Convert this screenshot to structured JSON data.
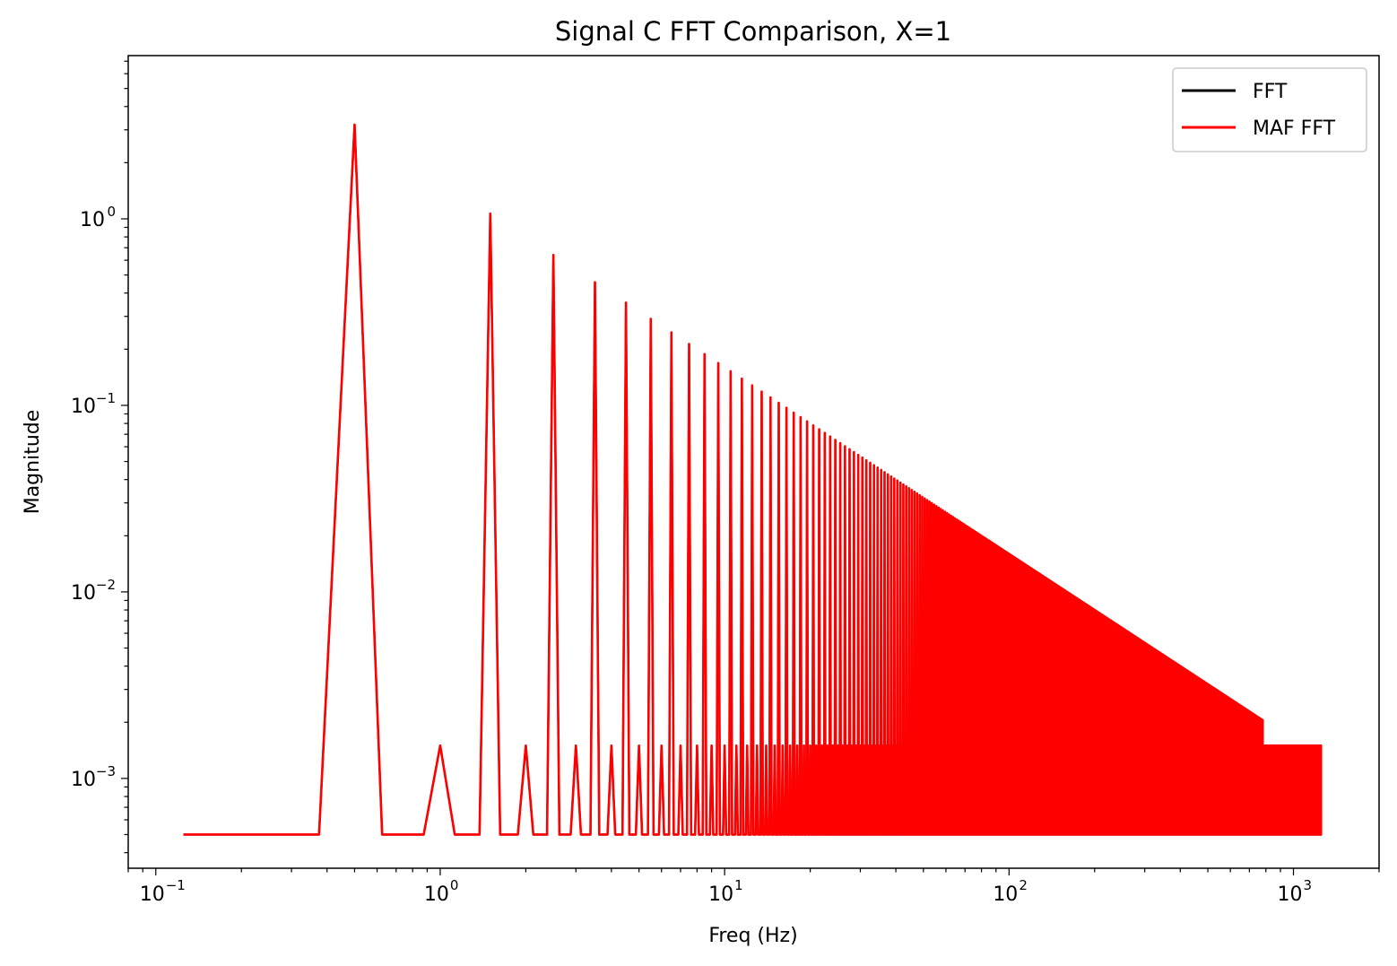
{
  "chart_data": {
    "type": "line",
    "title": "Signal C FFT Comparison, X=1",
    "xlabel": "Freq (Hz)",
    "ylabel": "Magnitude",
    "xscale": "log",
    "yscale": "log",
    "xlim": [
      0.08,
      2000
    ],
    "ylim": [
      0.00033,
      7.5
    ],
    "xticks": [
      {
        "value": 0.1,
        "base": "10",
        "exp": "−1"
      },
      {
        "value": 1,
        "base": "10",
        "exp": "0"
      },
      {
        "value": 10,
        "base": "10",
        "exp": "1"
      },
      {
        "value": 100,
        "base": "10",
        "exp": "2"
      },
      {
        "value": 1000,
        "base": "10",
        "exp": "3"
      }
    ],
    "yticks": [
      {
        "value": 1,
        "base": "10",
        "exp": "0"
      },
      {
        "value": 0.1,
        "base": "10",
        "exp": "−1"
      },
      {
        "value": 0.01,
        "base": "10",
        "exp": "−2"
      },
      {
        "value": 0.001,
        "base": "10",
        "exp": "−3"
      }
    ],
    "grid": false,
    "legend_position": "top-right",
    "series": [
      {
        "name": "FFT",
        "color": "#000000"
      },
      {
        "name": "MAF FFT",
        "color": "#ff0000"
      }
    ],
    "spectrum": {
      "freq_resolution_hz": 0.125,
      "max_freq_hz": 1250,
      "fundamental_hz": 0.5,
      "harmonic_spacing_hz": 1.0,
      "fundamental_magnitude": 3.2,
      "harmonic_decay": "1/n",
      "even_peak_magnitude": 0.0015,
      "noise_floor": 0.0005,
      "harmonics_end_hz": 780
    }
  }
}
